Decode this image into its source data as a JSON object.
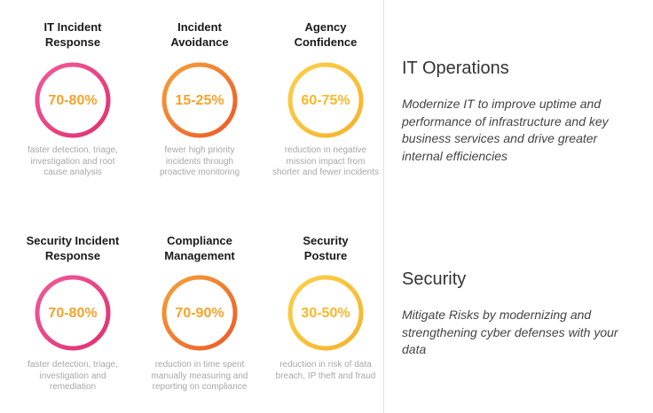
{
  "sections": [
    {
      "heading": "IT Operations",
      "description": [
        "Modernize IT to improve uptime and",
        "performance of infrastructure and key",
        "business services and drive greater",
        "internal efficiencies"
      ],
      "metrics": [
        {
          "title": [
            "IT Incident",
            "Response"
          ],
          "value": "70-80%",
          "description": [
            "faster detection, triage,",
            "investigation and root",
            "cause analysis"
          ]
        },
        {
          "title": [
            "Incident",
            "Avoidance"
          ],
          "value": "15-25%",
          "description": [
            "fewer high priority",
            "incidents through",
            "proactive monitoring"
          ]
        },
        {
          "title": [
            "Agency",
            "Confidence"
          ],
          "value": "60-75%",
          "description": [
            "reduction in negative",
            "mission impact from",
            "shorter and fewer incidents"
          ]
        }
      ]
    },
    {
      "heading": "Security",
      "description": [
        "Mitigate Risks by modernizing and",
        "strengthening cyber defenses with your",
        "data"
      ],
      "metrics": [
        {
          "title": [
            "Security Incident",
            "Response"
          ],
          "value": "70-80%",
          "description": [
            "faster detection, triage,",
            "investigation and",
            "remediation"
          ]
        },
        {
          "title": [
            "Compliance",
            "Management"
          ],
          "value": "70-90%",
          "description": [
            "reduction in time spent",
            "manually measuring and",
            "reporting on compliance"
          ]
        },
        {
          "title": [
            "Security",
            "Posture"
          ],
          "value": "30-50%",
          "description": [
            "reduction in risk of data",
            "breach, IP theft and fraud"
          ]
        }
      ]
    }
  ]
}
